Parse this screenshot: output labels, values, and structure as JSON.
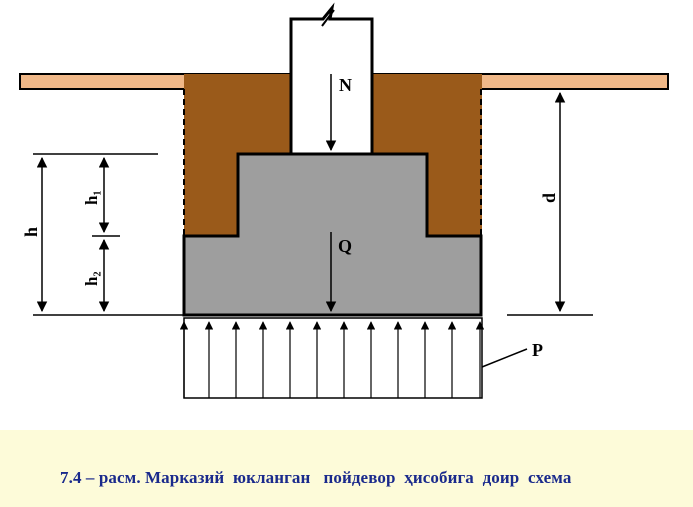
{
  "diagram": {
    "labels": {
      "N": "N",
      "Q": "Q",
      "P": "P",
      "d": "d",
      "h": "h",
      "h1": "h₁",
      "h2": "h₂"
    },
    "colors": {
      "ground_surface": "#f0b888",
      "soil_fill": "#9a5a1a",
      "foundation": "#9e9e9e",
      "column": "#ffffff",
      "line": "#000000",
      "caption_background": "#fdfbd9",
      "caption_text": "#1a2a8c"
    }
  },
  "caption": {
    "text": "7.4 – расм. Марказий  юкланган   пойдевор  ҳисобига  доир  схема"
  }
}
